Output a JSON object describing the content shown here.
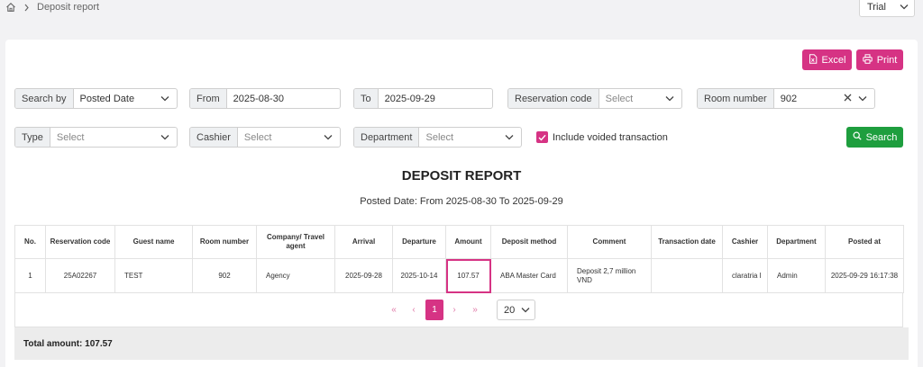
{
  "breadcrumb": {
    "home_icon": "home-icon",
    "page": "Deposit report"
  },
  "header": {
    "org_select": "Trial"
  },
  "toolbar": {
    "excel_label": "Excel",
    "print_label": "Print"
  },
  "filters": {
    "search_by": {
      "label": "Search by",
      "value": "Posted Date"
    },
    "from": {
      "label": "From",
      "value": "2025-08-30"
    },
    "to": {
      "label": "To",
      "value": "2025-09-29"
    },
    "reservation_code": {
      "label": "Reservation code",
      "placeholder": "Select"
    },
    "room_number": {
      "label": "Room number",
      "value": "902"
    },
    "type": {
      "label": "Type",
      "placeholder": "Select"
    },
    "cashier": {
      "label": "Cashier",
      "placeholder": "Select"
    },
    "department": {
      "label": "Department",
      "placeholder": "Select"
    },
    "include_voided": {
      "label": "Include voided transaction",
      "checked": true
    },
    "search_label": "Search"
  },
  "report": {
    "title": "DEPOSIT REPORT",
    "subtitle": "Posted Date:  From 2025-08-30   To 2025-09-29",
    "columns": [
      "No.",
      "Reservation code",
      "Guest name",
      "Room number",
      "Company/ Travel agent",
      "Arrival",
      "Departure",
      "Amount",
      "Deposit method",
      "Comment",
      "Transaction date",
      "Cashier",
      "Department",
      "Posted at"
    ],
    "rows": [
      [
        "1",
        "25A02267",
        "TEST",
        "902",
        "Agency",
        "2025-09-28",
        "2025-10-14",
        "107.57",
        "ABA Master Card",
        "Deposit 2,7 million VND",
        "",
        "claratria l",
        "Admin",
        "2025-09-29 16:17:38"
      ]
    ]
  },
  "pagination": {
    "first": "«",
    "prev": "‹",
    "current": "1",
    "next": "›",
    "last": "»",
    "page_size": "20"
  },
  "total": "Total amount: 107.57",
  "colors": {
    "accent": "#d63384",
    "success": "#1e9e3e"
  }
}
